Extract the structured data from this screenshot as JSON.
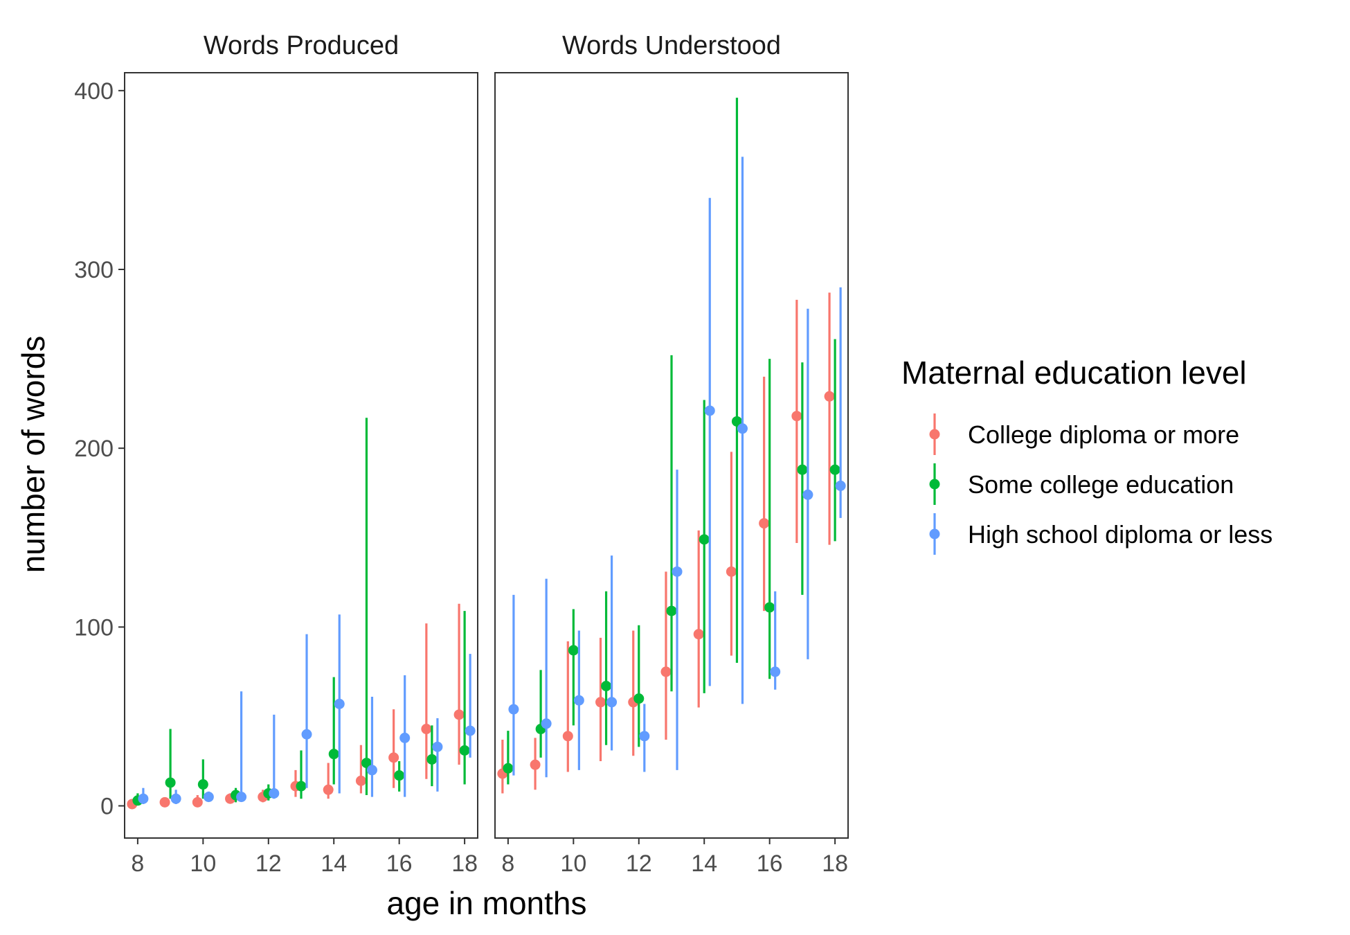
{
  "chart_data": {
    "type": "scatter",
    "subtype": "pointrange-faceted",
    "xlabel": "age in months",
    "ylabel": "number of words",
    "xlim": [
      7.6,
      18.4
    ],
    "ylim": [
      -18,
      410
    ],
    "xticks": [
      8,
      10,
      12,
      14,
      16,
      18
    ],
    "yticks": [
      0,
      100,
      200,
      300,
      400
    ],
    "grid": false,
    "legend": {
      "title": "Maternal education level",
      "position": "right"
    },
    "series": [
      {
        "name": "College diploma or more",
        "color": "#F8766D",
        "dodge": -0.17
      },
      {
        "name": "Some college education",
        "color": "#00BA38",
        "dodge": 0.0
      },
      {
        "name": "High school diploma or less",
        "color": "#619CFF",
        "dodge": 0.17
      }
    ],
    "panels": [
      {
        "title": "Words Produced",
        "x": [
          8,
          9,
          10,
          11,
          12,
          13,
          14,
          15,
          16,
          17,
          18
        ],
        "series": [
          {
            "name": "College diploma or more",
            "y": [
              1,
              2,
              2,
              4,
              5,
              11,
              9,
              14,
              27,
              43,
              51
            ],
            "low": [
              0,
              1,
              1,
              2,
              2,
              5,
              4,
              7,
              10,
              15,
              23
            ],
            "high": [
              3,
              4,
              6,
              7,
              9,
              20,
              24,
              34,
              54,
              102,
              113
            ]
          },
          {
            "name": "Some college education",
            "y": [
              3,
              13,
              12,
              6,
              7,
              11,
              29,
              24,
              17,
              26,
              31
            ],
            "low": [
              1,
              4,
              4,
              2,
              3,
              4,
              12,
              6,
              8,
              11,
              12
            ],
            "high": [
              7,
              43,
              26,
              10,
              12,
              31,
              72,
              217,
              25,
              45,
              109
            ]
          },
          {
            "name": "High school diploma or less",
            "y": [
              4,
              4,
              5,
              5,
              7,
              40,
              57,
              20,
              38,
              33,
              42
            ],
            "low": [
              1,
              1,
              3,
              3,
              4,
              10,
              7,
              5,
              5,
              8,
              27
            ],
            "high": [
              10,
              9,
              8,
              64,
              51,
              96,
              107,
              61,
              73,
              49,
              85
            ]
          }
        ]
      },
      {
        "title": "Words Understood",
        "x": [
          8,
          9,
          10,
          11,
          12,
          13,
          14,
          15,
          16,
          17,
          18
        ],
        "series": [
          {
            "name": "College diploma or more",
            "y": [
              18,
              23,
              39,
              58,
              58,
              75,
              96,
              131,
              158,
              218,
              229
            ],
            "low": [
              7,
              9,
              19,
              25,
              28,
              37,
              55,
              84,
              109,
              147,
              146
            ],
            "high": [
              37,
              38,
              92,
              94,
              98,
              131,
              154,
              198,
              240,
              283,
              287
            ]
          },
          {
            "name": "Some college education",
            "y": [
              21,
              43,
              87,
              67,
              60,
              109,
              149,
              215,
              111,
              188,
              188
            ],
            "low": [
              12,
              27,
              45,
              34,
              33,
              64,
              63,
              80,
              71,
              118,
              148
            ],
            "high": [
              42,
              76,
              110,
              120,
              101,
              252,
              227,
              396,
              250,
              248,
              261
            ]
          },
          {
            "name": "High school diploma or less",
            "y": [
              54,
              46,
              59,
              58,
              39,
              131,
              221,
              211,
              75,
              174,
              179
            ],
            "low": [
              17,
              16,
              20,
              31,
              19,
              20,
              67,
              57,
              65,
              82,
              161
            ],
            "high": [
              118,
              127,
              98,
              140,
              57,
              188,
              340,
              363,
              120,
              278,
              290
            ]
          }
        ]
      }
    ]
  }
}
